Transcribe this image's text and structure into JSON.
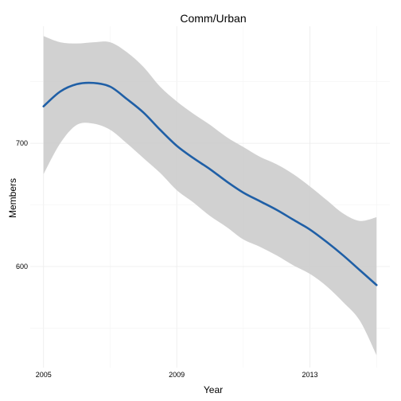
{
  "chart_data": {
    "type": "line",
    "title": "Comm/Urban",
    "xlabel": "Year",
    "ylabel": "Members",
    "xlim": [
      2004.6,
      2015.4
    ],
    "ylim": [
      518,
      795
    ],
    "x_ticks": [
      2005,
      2009,
      2013
    ],
    "y_ticks": [
      600,
      700
    ],
    "grid": true,
    "colors": {
      "line": "#1f5fa6",
      "band": "#cccccc",
      "grid": "#ebebeb"
    },
    "series": [
      {
        "x": [
          2005,
          2005.5,
          2006,
          2006.5,
          2007,
          2007.5,
          2008,
          2008.5,
          2009,
          2009.5,
          2010,
          2010.5,
          2011,
          2011.5,
          2012,
          2012.5,
          2013,
          2013.5,
          2014,
          2014.5,
          2015
        ],
        "y": [
          730,
          742,
          748,
          749,
          746,
          736,
          725,
          711,
          698,
          688,
          679,
          669,
          660,
          653,
          646,
          638,
          630,
          620,
          609,
          597,
          585
        ],
        "lower": [
          675,
          700,
          715,
          716,
          711,
          700,
          688,
          676,
          662,
          652,
          641,
          632,
          622,
          616,
          609,
          601,
          594,
          584,
          571,
          556,
          528
        ],
        "upper": [
          787,
          782,
          781,
          782,
          782,
          774,
          762,
          746,
          734,
          724,
          715,
          705,
          697,
          689,
          683,
          675,
          665,
          654,
          643,
          637,
          640
        ]
      }
    ]
  }
}
